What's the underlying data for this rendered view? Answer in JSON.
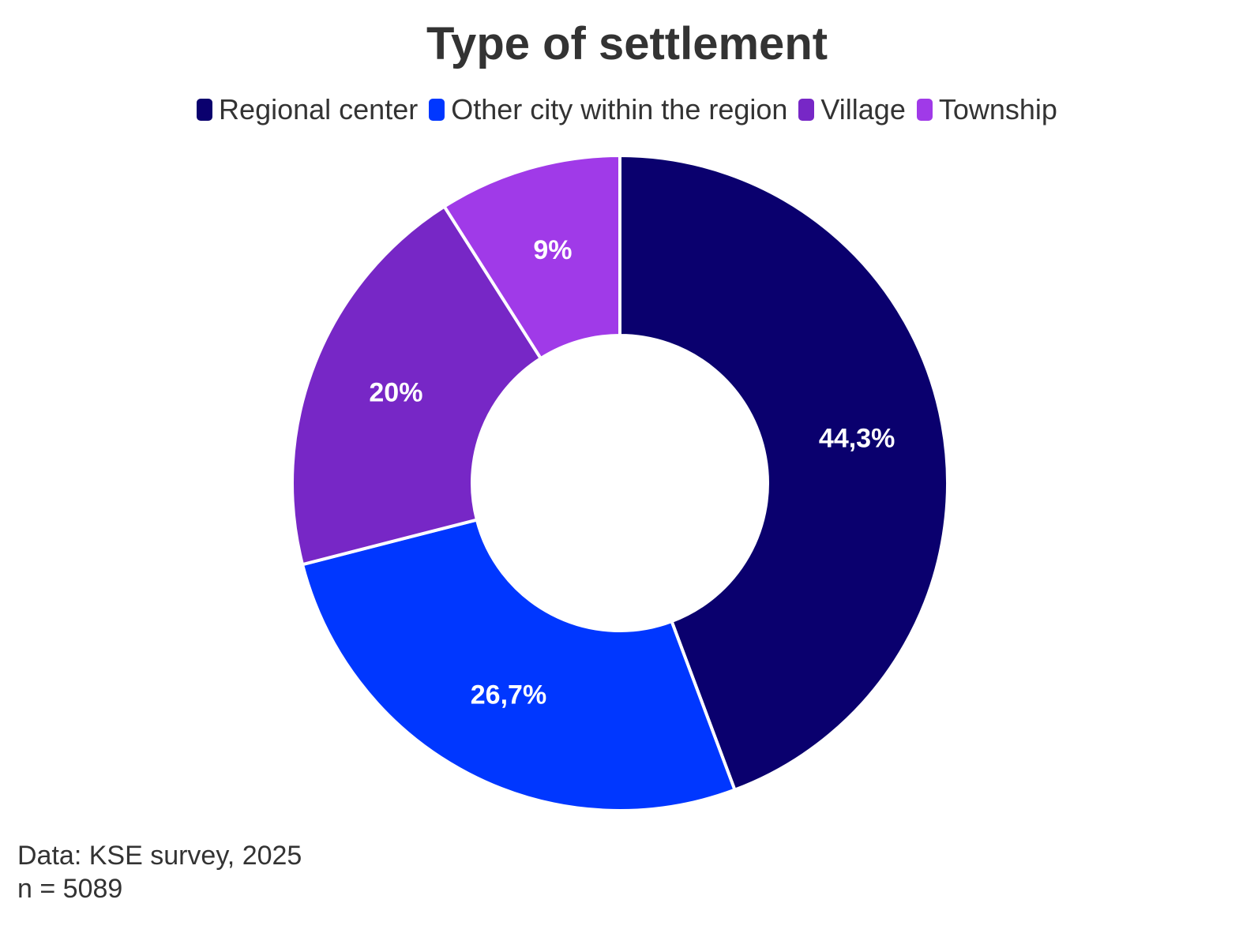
{
  "chart_data": {
    "type": "pie",
    "title": "Type of settlement",
    "categories": [
      "Regional center",
      "Other city within the region",
      "Village",
      "Township"
    ],
    "values": [
      44.3,
      26.7,
      20,
      9
    ],
    "labels": [
      "44,3%",
      "26,7%",
      "20%",
      "9%"
    ],
    "colors": [
      "#0a006e",
      "#0037ff",
      "#7727c6",
      "#a03ae8"
    ],
    "legend_position": "top",
    "donut": true
  },
  "footnote": {
    "source": "Data: KSE survey, 2025",
    "sample": "n = 5089"
  }
}
